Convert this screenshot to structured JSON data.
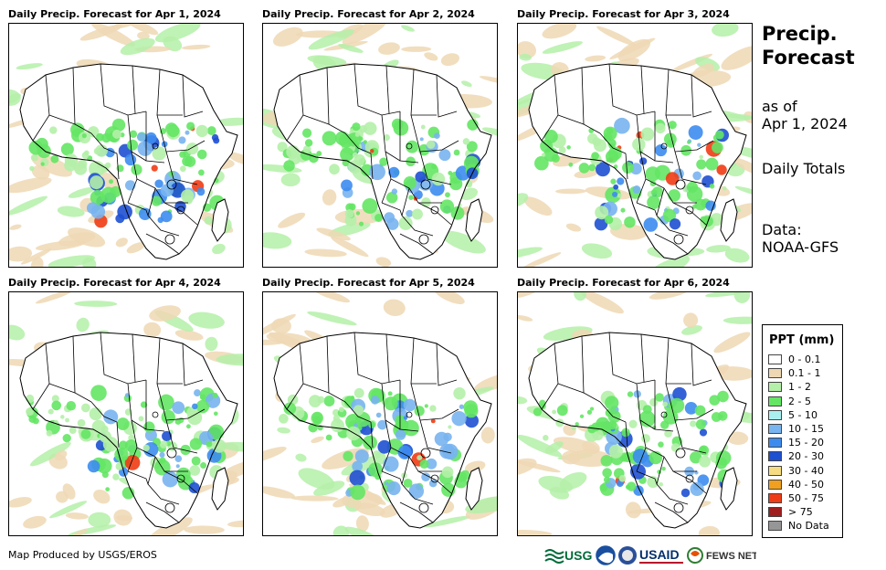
{
  "panels": [
    {
      "title": "Daily Precip. Forecast for Apr 1, 2024"
    },
    {
      "title": "Daily Precip. Forecast for Apr 2, 2024"
    },
    {
      "title": "Daily Precip. Forecast for Apr 3, 2024"
    },
    {
      "title": "Daily Precip. Forecast for Apr 4, 2024"
    },
    {
      "title": "Daily Precip. Forecast for Apr 5, 2024"
    },
    {
      "title": "Daily Precip. Forecast for Apr 6, 2024"
    }
  ],
  "sidebar": {
    "title_line1": "Precip.",
    "title_line2": "Forecast",
    "asof_line1": "as of",
    "asof_line2": "Apr 1, 2024",
    "totals": "Daily Totals",
    "data_line1": "Data:",
    "data_line2": "NOAA-GFS"
  },
  "legend": {
    "title": "PPT (mm)",
    "items": [
      {
        "label": "0 - 0.1",
        "color": "#ffffff"
      },
      {
        "label": "0.1 - 1",
        "color": "#eed8b4"
      },
      {
        "label": "1 - 2",
        "color": "#b4f0a8"
      },
      {
        "label": "2 - 5",
        "color": "#64e664"
      },
      {
        "label": "5 - 10",
        "color": "#aaf0f0"
      },
      {
        "label": "10 - 15",
        "color": "#78b4f0"
      },
      {
        "label": "15 - 20",
        "color": "#3c8cf0"
      },
      {
        "label": "20 - 30",
        "color": "#1e50d2"
      },
      {
        "label": "30 - 40",
        "color": "#f5dc82"
      },
      {
        "label": "40 - 50",
        "color": "#f0a01e"
      },
      {
        "label": "50 - 75",
        "color": "#f03c14"
      },
      {
        "label": "> 75",
        "color": "#a01e1e"
      },
      {
        "label": "No Data",
        "color": "#969696"
      }
    ]
  },
  "footer": {
    "credit": "Map Produced by USGS/EROS"
  },
  "logos": {
    "usgs": "USGS",
    "usaid": "USAID",
    "fewsnet": "FEWS NET"
  }
}
